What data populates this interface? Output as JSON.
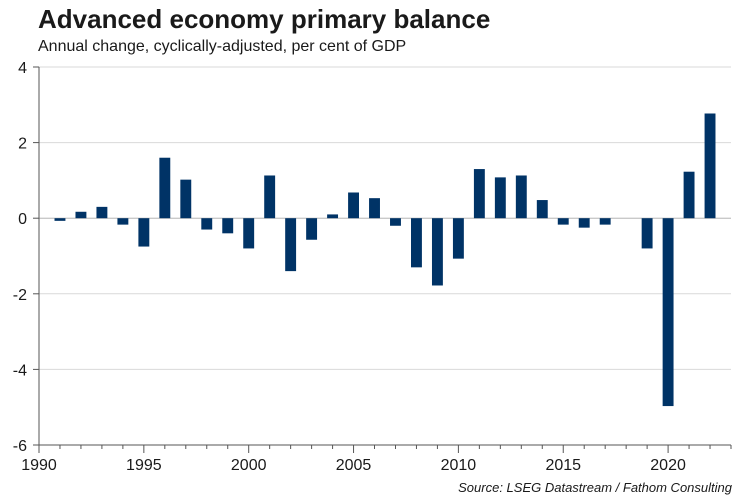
{
  "chart_data": {
    "type": "bar",
    "title": "Advanced economy primary balance",
    "subtitle": "Annual change, cyclically-adjusted, per cent of GDP",
    "source": "Source: LSEG Datastream / Fathom Consulting",
    "xlabel": "",
    "ylabel": "",
    "ylim": [
      -6,
      4
    ],
    "yticks": [
      4,
      2,
      0,
      -2,
      -4,
      -6
    ],
    "xticks": [
      1990,
      1995,
      2000,
      2005,
      2010,
      2015,
      2020
    ],
    "xlim": [
      1990,
      2023
    ],
    "grid": true,
    "bar_color": "#003366",
    "categories": [
      1991,
      1992,
      1993,
      1994,
      1995,
      1996,
      1997,
      1998,
      1999,
      2000,
      2001,
      2002,
      2003,
      2004,
      2005,
      2006,
      2007,
      2008,
      2009,
      2010,
      2011,
      2012,
      2013,
      2014,
      2015,
      2016,
      2017,
      2018,
      2019,
      2020,
      2021,
      2022
    ],
    "values": [
      -0.07,
      0.17,
      0.3,
      -0.17,
      -0.75,
      1.6,
      1.02,
      -0.3,
      -0.4,
      -0.8,
      1.13,
      -1.4,
      -0.57,
      0.1,
      0.68,
      0.53,
      -0.2,
      -1.3,
      -1.78,
      -1.07,
      1.3,
      1.08,
      1.13,
      0.48,
      -0.17,
      -0.25,
      -0.17,
      0.0,
      -0.8,
      -4.97,
      1.23,
      2.77
    ]
  }
}
